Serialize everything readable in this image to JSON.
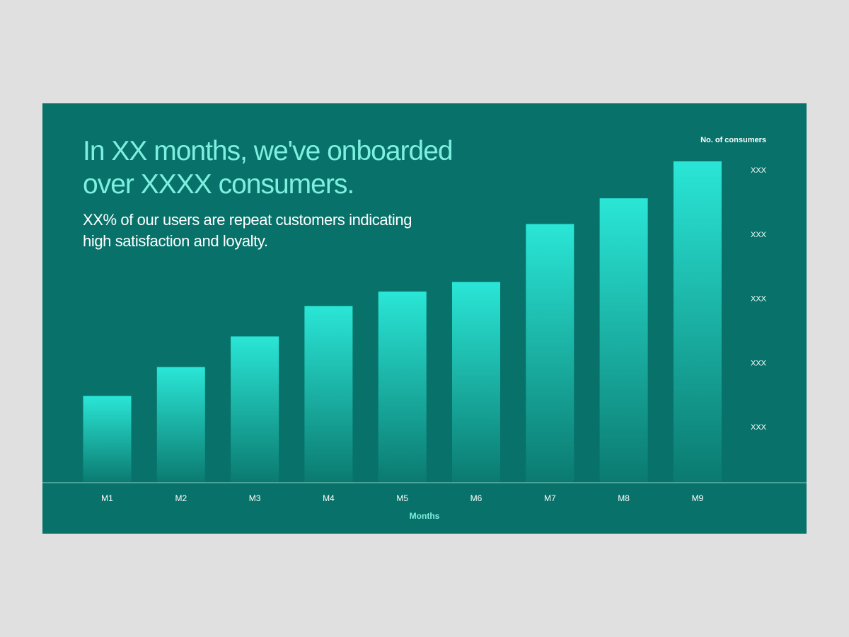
{
  "slide": {
    "headline": "In XX months, we've onboarded over XXXX consumers.",
    "subline": "XX% of our users are repeat customers indicating high satisfaction and loyalty."
  },
  "colors": {
    "background": "#08726a",
    "headline": "#7ef0df",
    "bar_top": "#2ae6d6",
    "bar_bottom": "#0b7a70"
  },
  "chart_data": {
    "type": "bar",
    "categories": [
      "M1",
      "M2",
      "M3",
      "M4",
      "M5",
      "M6",
      "M7",
      "M8",
      "M9"
    ],
    "values": [
      27,
      36,
      45.5,
      55,
      59.5,
      62.5,
      80.5,
      88.5,
      100
    ],
    "xlabel": "Months",
    "ylabel": "No. of consumers",
    "y_tick_labels": [
      "XXX",
      "XXX",
      "XXX",
      "XXX",
      "XXX"
    ],
    "y_tick_values": [
      100,
      80,
      60,
      40,
      20
    ],
    "ylim": [
      0,
      100
    ],
    "grid": false,
    "legend": "none"
  }
}
